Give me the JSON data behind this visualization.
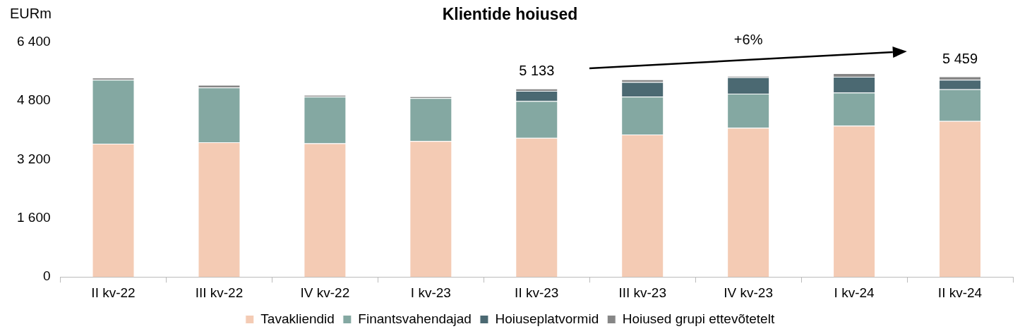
{
  "chart_data": {
    "type": "bar",
    "title": "Klientide hoiused",
    "ylabel": "EURm",
    "stacked": true,
    "categories": [
      "II kv-22",
      "III kv-22",
      "IV kv-22",
      "I kv-23",
      "II kv-23",
      "III kv-23",
      "IV kv-23",
      "I kv-24",
      "II kv-24"
    ],
    "series": [
      {
        "name": "Tavakliendid",
        "color": "#f4cbb4",
        "values": [
          3630,
          3670,
          3640,
          3700,
          3790,
          3880,
          4060,
          4120,
          4250
        ]
      },
      {
        "name": "Finantsvahendajad",
        "color": "#84a8a2",
        "values": [
          1740,
          1490,
          1270,
          1170,
          1000,
          1030,
          930,
          900,
          860
        ]
      },
      {
        "name": "Hoiuseplatvormid",
        "color": "#4b6972",
        "values": [
          0,
          0,
          0,
          0,
          280,
          400,
          450,
          430,
          260
        ]
      },
      {
        "name": "Hoiused grupi ettevõtetelt",
        "color": "#868686",
        "values": [
          60,
          70,
          50,
          50,
          60,
          70,
          30,
          100,
          90
        ]
      }
    ],
    "ylim": [
      0,
      6400
    ],
    "yticks": [
      {
        "value": 0,
        "label": "0"
      },
      {
        "value": 1600,
        "label": "1 600"
      },
      {
        "value": 3200,
        "label": "3 200"
      },
      {
        "value": 4800,
        "label": "4 800"
      },
      {
        "value": 6400,
        "label": "6 400"
      }
    ],
    "grid": false,
    "legend": "bottom",
    "annotations": [
      {
        "text": "5 133",
        "x": "II kv-23",
        "y": 5133
      },
      {
        "text": "5 459",
        "x": "II kv-24",
        "y": 5459
      },
      "+6%"
    ]
  }
}
